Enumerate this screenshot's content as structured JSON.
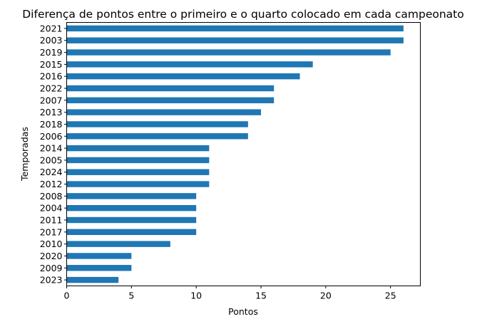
{
  "chart_data": {
    "type": "bar",
    "orientation": "horizontal",
    "title": "Diferença de pontos entre o primeiro e o quarto colocado em cada campeonato",
    "xlabel": "Pontos",
    "ylabel": "Temporadas",
    "xlim": [
      0,
      27.3
    ],
    "xticks": [
      0,
      5,
      10,
      15,
      20,
      25
    ],
    "grid": false,
    "legend": "none",
    "bar_color": "#1f77b4",
    "categories": [
      "2021",
      "2003",
      "2019",
      "2015",
      "2016",
      "2022",
      "2007",
      "2013",
      "2018",
      "2006",
      "2014",
      "2005",
      "2024",
      "2012",
      "2008",
      "2004",
      "2011",
      "2017",
      "2010",
      "2020",
      "2009",
      "2023"
    ],
    "values": [
      26,
      26,
      25,
      19,
      18,
      16,
      16,
      15,
      14,
      14,
      11,
      11,
      11,
      11,
      10,
      10,
      10,
      10,
      8,
      5,
      5,
      4
    ]
  }
}
